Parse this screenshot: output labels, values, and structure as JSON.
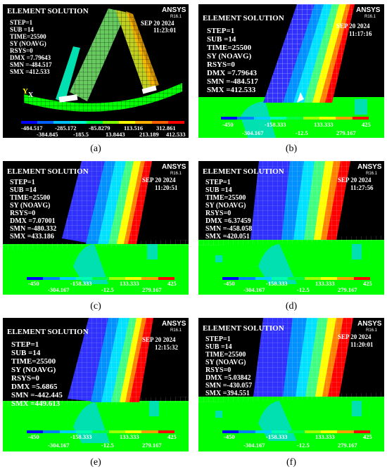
{
  "panels": [
    {
      "letter": "a",
      "element_solution": "ELEMENT SOLUTION",
      "ansys": "ANSYS",
      "release": "R16.1",
      "date": "SEP 20 2024",
      "time_clock": "11:23:01",
      "step": "STEP=1",
      "sub": "SUB =14",
      "time": "TIME=25500",
      "sy": "SY (NOAVG)",
      "rsys": "RSYS=0",
      "dmx": "DMX =7.79643",
      "smn": "SMN =-484.517",
      "smx": "SMX =412.533",
      "axis_y": "Y",
      "axis_x": "X",
      "legend_top": [
        "-484.517",
        "-285.172",
        "-85.8279",
        "113.516",
        "312.861"
      ],
      "legend_bottom": [
        "-384.845",
        "-185.5",
        "13.8443",
        "213.189",
        "412.533"
      ]
    },
    {
      "letter": "b",
      "element_solution": "ELEMENT SOLUTION",
      "ansys": "ANSYS",
      "release": "R16.1",
      "date": "SEP 20 2024",
      "time_clock": "11:17:16",
      "step": "STEP=1",
      "sub": "SUB =14",
      "time": "TIME=25500",
      "sy": "SY (NOAVG)",
      "rsys": "RSYS=0",
      "dmx": "DMX =7.79643",
      "smn": "SMN =-484.517",
      "smx": "SMX =412.533",
      "legend_top": [
        "-450",
        "-158.333",
        "133.333",
        "425"
      ],
      "legend_bottom": [
        "-304.167",
        "-12.5",
        "279.167"
      ]
    },
    {
      "letter": "c",
      "element_solution": "ELEMENT SOLUTION",
      "ansys": "ANSYS",
      "release": "R16.1",
      "date": "SEP 20 2024",
      "time_clock": "11:20:51",
      "step": "STEP=1",
      "sub": "SUB =14",
      "time": "TIME=25500",
      "sy": "SY (NOAVG)",
      "rsys": "RSYS=0",
      "dmx": "DMX =7.07001",
      "smn": "SMN =-480.332",
      "smx": "SMX =433.186",
      "legend_top": [
        "-450",
        "-158.333",
        "133.333",
        "425"
      ],
      "legend_bottom": [
        "-304.167",
        "-12.5",
        "279.167"
      ]
    },
    {
      "letter": "d",
      "element_solution": "ELEMENT SOLUTION",
      "ansys": "ANSYS",
      "release": "R16.1",
      "date": "SEP 20 2024",
      "time_clock": "11:27:56",
      "step": "STEP=1",
      "sub": "SUB =14",
      "time": "TIME=25500",
      "sy": "SY (NOAVG)",
      "rsys": "RSYS=0",
      "dmx": "DMX =6.37459",
      "smn": "SMN =-458.058",
      "smx": "SMX =420.051",
      "legend_top": [
        "-450",
        "-158.333",
        "133.333",
        "425"
      ],
      "legend_bottom": [
        "-304.167",
        "-12.5",
        "279.167"
      ]
    },
    {
      "letter": "e",
      "element_solution": "ELEMENT SOLUTION",
      "ansys": "ANSYS",
      "release": "R16.1",
      "date": "SEP 20 2024",
      "time_clock": "12:15:32",
      "step": "STEP=1",
      "sub": "SUB =14",
      "time": "TIME=25500",
      "sy": "SY (NOAVG)",
      "rsys": "RSYS=0",
      "dmx": "DMX =5.6865",
      "smn": "SMN =-442.445",
      "smx": "SMX =449.613",
      "legend_top": [
        "-450",
        "-158.333",
        "133.333",
        "425"
      ],
      "legend_bottom": [
        "-304.167",
        "-12.5",
        "279.167"
      ]
    },
    {
      "letter": "f",
      "element_solution": "ELEMENT SOLUTION",
      "ansys": "ANSYS",
      "release": "R16.1",
      "date": "SEP 20 2024",
      "time_clock": "11:20:01",
      "step": "STEP=1",
      "sub": "SUB =14",
      "time": "TIME=25500",
      "sy": "SY (NOAVG)",
      "rsys": "RSYS=0",
      "dmx": "DMX =5.03842",
      "smn": "SMN =-430.057",
      "smx": "SMX =394.551",
      "legend_top": [
        "-450",
        "-158.333",
        "133.333",
        "425"
      ],
      "legend_bottom": [
        "-304.167",
        "-12.5",
        "279.167"
      ]
    }
  ],
  "captions": [
    "(a)",
    "(b)",
    "(c)",
    "(d)",
    "(e)",
    "(f)"
  ],
  "colors": {
    "background": "#000000",
    "contour_blue": "#0000ff",
    "contour_cyan": "#00ffff",
    "contour_teal": "#00e0a0",
    "contour_green": "#00ff00",
    "contour_yellow": "#ffff00",
    "contour_orange": "#ff8000",
    "contour_red": "#ff0000"
  }
}
